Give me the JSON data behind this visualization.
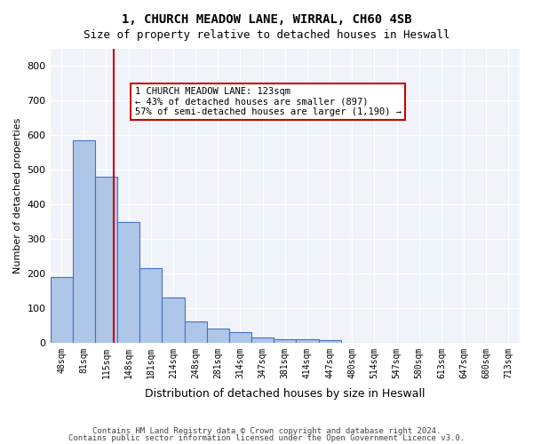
{
  "title": "1, CHURCH MEADOW LANE, WIRRAL, CH60 4SB",
  "subtitle": "Size of property relative to detached houses in Heswall",
  "xlabel": "Distribution of detached houses by size in Heswall",
  "ylabel": "Number of detached properties",
  "bar_labels": [
    "48sqm",
    "81sqm",
    "115sqm",
    "148sqm",
    "181sqm",
    "214sqm",
    "248sqm",
    "281sqm",
    "314sqm",
    "347sqm",
    "381sqm",
    "414sqm",
    "447sqm",
    "480sqm",
    "514sqm",
    "547sqm",
    "580sqm",
    "613sqm",
    "647sqm",
    "680sqm",
    "713sqm"
  ],
  "bar_values": [
    190,
    585,
    480,
    350,
    215,
    130,
    60,
    40,
    30,
    15,
    10,
    10,
    8,
    0,
    0,
    0,
    0,
    0,
    0,
    0,
    0
  ],
  "bar_color": "#aec6e8",
  "bar_edge_color": "#4472c4",
  "background_color": "#f0f4fa",
  "grid_color": "#ffffff",
  "red_line_x": 2.33,
  "annotation_text": "1 CHURCH MEADOW LANE: 123sqm\n← 43% of detached houses are smaller (897)\n57% of semi-detached houses are larger (1,190) →",
  "annotation_box_color": "#ffffff",
  "annotation_box_edge": "#cc0000",
  "ylim": [
    0,
    850
  ],
  "yticks": [
    0,
    100,
    200,
    300,
    400,
    500,
    600,
    700,
    800
  ],
  "footer_line1": "Contains HM Land Registry data © Crown copyright and database right 2024.",
  "footer_line2": "Contains public sector information licensed under the Open Government Licence v3.0."
}
